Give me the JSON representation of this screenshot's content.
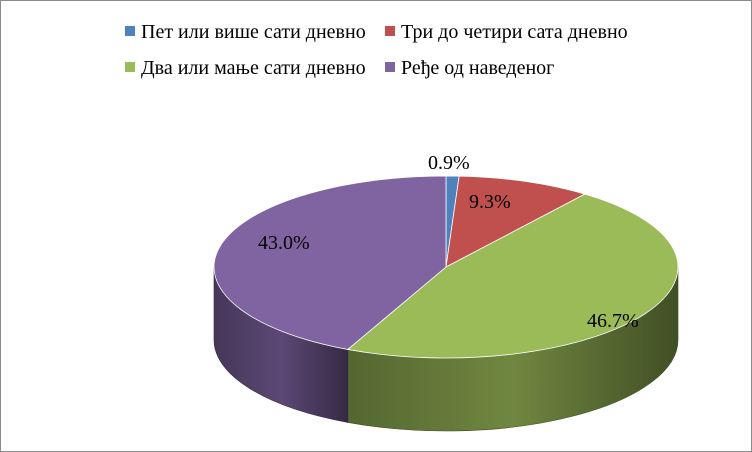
{
  "chart_data": {
    "type": "pie",
    "title": "",
    "categories": [
      "Пет или више сати дневно",
      "Три до четири сата дневно",
      "Два или мање сати дневно",
      "Ређе од наведеног"
    ],
    "values": [
      0.9,
      9.3,
      46.7,
      43.0
    ],
    "value_labels": [
      "0.9%",
      "9.3%",
      "46.7%",
      "43.0%"
    ],
    "colors": [
      "#4f81bd",
      "#c0504d",
      "#9bbb59",
      "#8064a2"
    ],
    "legend_position": "top",
    "style": "3d"
  }
}
